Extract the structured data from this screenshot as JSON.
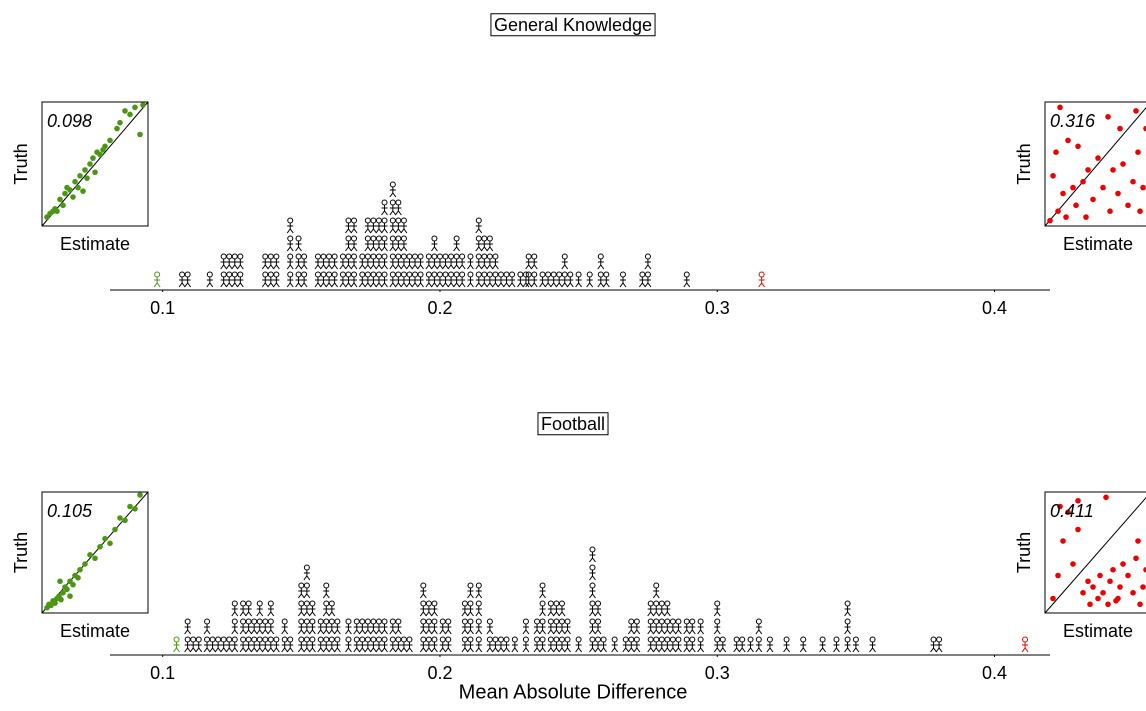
{
  "chart_data": [
    {
      "type": "dotplot",
      "title": "General Knowledge",
      "xlim": [
        0.081,
        0.42
      ],
      "xticks": [
        0.1,
        0.2,
        0.3,
        0.4
      ],
      "columns": {
        "x": [
          0.107,
          0.109,
          0.117,
          0.122,
          0.124,
          0.126,
          0.128,
          0.137,
          0.139,
          0.141,
          0.146,
          0.149,
          0.151,
          0.156,
          0.158,
          0.16,
          0.162,
          0.165,
          0.167,
          0.169,
          0.172,
          0.174,
          0.176,
          0.178,
          0.18,
          0.183,
          0.185,
          0.187,
          0.189,
          0.191,
          0.193,
          0.196,
          0.198,
          0.2,
          0.202,
          0.204,
          0.206,
          0.208,
          0.211,
          0.214,
          0.216,
          0.218,
          0.22,
          0.222,
          0.224,
          0.226,
          0.229,
          0.231,
          0.232,
          0.234,
          0.237,
          0.239,
          0.241,
          0.243,
          0.245,
          0.247,
          0.25,
          0.254,
          0.258,
          0.26,
          0.266,
          0.273,
          0.275,
          0.289
        ],
        "counts": [
          1,
          1,
          1,
          2,
          2,
          2,
          2,
          2,
          2,
          2,
          4,
          3,
          2,
          2,
          2,
          2,
          2,
          2,
          4,
          4,
          2,
          4,
          4,
          4,
          5,
          6,
          5,
          4,
          2,
          2,
          2,
          2,
          3,
          2,
          2,
          2,
          3,
          2,
          2,
          4,
          3,
          3,
          2,
          1,
          1,
          1,
          1,
          1,
          2,
          2,
          1,
          1,
          1,
          1,
          2,
          1,
          1,
          1,
          2,
          1,
          1,
          1,
          2,
          1
        ]
      },
      "insets": [
        {
          "xlabel": "Estimate",
          "ylabel": "Truth",
          "score": 0.098,
          "color": "#4b9612",
          "side": "left",
          "x": [
            0.02,
            0.05,
            0.08,
            0.1,
            0.12,
            0.15,
            0.18,
            0.2,
            0.22,
            0.25,
            0.28,
            0.3,
            0.33,
            0.35,
            0.38,
            0.4,
            0.42,
            0.45,
            0.48,
            0.5,
            0.52,
            0.55,
            0.58,
            0.6,
            0.65,
            0.72,
            0.75,
            0.8,
            0.85,
            0.9,
            0.95,
            0.98
          ],
          "y": [
            0.05,
            0.08,
            0.1,
            0.12,
            0.1,
            0.2,
            0.15,
            0.25,
            0.3,
            0.28,
            0.22,
            0.35,
            0.3,
            0.4,
            0.27,
            0.45,
            0.38,
            0.5,
            0.55,
            0.43,
            0.6,
            0.58,
            0.62,
            0.65,
            0.7,
            0.8,
            0.85,
            0.95,
            0.92,
            0.98,
            0.75,
            1.0
          ]
        },
        {
          "xlabel": "Estimate",
          "ylabel": "Truth",
          "score": 0.316,
          "color": "#ee0000",
          "side": "right",
          "x": [
            0.02,
            0.05,
            0.08,
            0.1,
            0.12,
            0.15,
            0.18,
            0.2,
            0.25,
            0.28,
            0.3,
            0.35,
            0.38,
            0.4,
            0.45,
            0.5,
            0.55,
            0.6,
            0.62,
            0.65,
            0.7,
            0.72,
            0.75,
            0.8,
            0.85,
            0.88,
            0.9,
            0.95,
            0.98,
            0.92
          ],
          "y": [
            0.02,
            0.4,
            0.6,
            0.1,
            0.98,
            0.25,
            0.05,
            0.7,
            0.3,
            0.15,
            0.65,
            0.35,
            0.05,
            0.45,
            0.2,
            0.55,
            0.3,
            0.9,
            0.1,
            0.45,
            0.25,
            0.8,
            0.5,
            0.15,
            0.35,
            0.95,
            0.6,
            0.3,
            0.8,
            0.1
          ]
        }
      ]
    },
    {
      "type": "dotplot",
      "title": "Football",
      "xlabel": "Mean Absolute Difference",
      "xlim": [
        0.081,
        0.42
      ],
      "xticks": [
        0.1,
        0.2,
        0.3,
        0.4
      ],
      "columns": {
        "x": [
          0.109,
          0.111,
          0.113,
          0.116,
          0.118,
          0.12,
          0.122,
          0.124,
          0.126,
          0.129,
          0.131,
          0.133,
          0.135,
          0.137,
          0.139,
          0.141,
          0.144,
          0.146,
          0.15,
          0.152,
          0.154,
          0.157,
          0.159,
          0.161,
          0.163,
          0.167,
          0.17,
          0.172,
          0.174,
          0.176,
          0.178,
          0.18,
          0.183,
          0.185,
          0.187,
          0.189,
          0.194,
          0.196,
          0.198,
          0.201,
          0.203,
          0.209,
          0.211,
          0.214,
          0.218,
          0.22,
          0.222,
          0.224,
          0.227,
          0.231,
          0.235,
          0.237,
          0.24,
          0.242,
          0.244,
          0.246,
          0.25,
          0.255,
          0.257,
          0.259,
          0.263,
          0.267,
          0.269,
          0.271,
          0.276,
          0.278,
          0.28,
          0.282,
          0.284,
          0.286,
          0.289,
          0.291,
          0.294,
          0.3,
          0.302,
          0.307,
          0.309,
          0.312,
          0.315,
          0.319,
          0.325,
          0.331,
          0.338,
          0.343,
          0.347,
          0.35,
          0.356,
          0.378,
          0.38
        ],
        "counts": [
          2,
          1,
          1,
          2,
          1,
          1,
          1,
          1,
          3,
          3,
          3,
          2,
          3,
          2,
          3,
          1,
          2,
          1,
          4,
          5,
          3,
          2,
          4,
          3,
          2,
          2,
          2,
          2,
          2,
          2,
          2,
          2,
          2,
          2,
          1,
          1,
          4,
          3,
          3,
          2,
          2,
          3,
          4,
          4,
          2,
          1,
          1,
          1,
          1,
          2,
          2,
          4,
          3,
          3,
          3,
          2,
          1,
          6,
          3,
          1,
          1,
          1,
          2,
          2,
          3,
          4,
          3,
          3,
          2,
          2,
          2,
          2,
          2,
          3,
          1,
          1,
          1,
          1,
          2,
          1,
          1,
          1,
          1,
          1,
          3,
          1,
          1,
          1,
          1
        ]
      },
      "insets": [
        {
          "xlabel": "Estimate",
          "ylabel": "Truth",
          "score": 0.105,
          "color": "#4b9612",
          "side": "left",
          "x": [
            0.02,
            0.04,
            0.06,
            0.08,
            0.1,
            0.12,
            0.14,
            0.16,
            0.18,
            0.2,
            0.22,
            0.25,
            0.28,
            0.3,
            0.33,
            0.35,
            0.4,
            0.45,
            0.5,
            0.55,
            0.6,
            0.65,
            0.7,
            0.75,
            0.8,
            0.85,
            0.9,
            0.95,
            0.15,
            0.25
          ],
          "y": [
            0.02,
            0.05,
            0.04,
            0.08,
            0.06,
            0.1,
            0.12,
            0.09,
            0.15,
            0.2,
            0.18,
            0.25,
            0.22,
            0.3,
            0.28,
            0.35,
            0.4,
            0.48,
            0.45,
            0.55,
            0.62,
            0.58,
            0.7,
            0.8,
            0.78,
            0.9,
            0.88,
            1.0,
            0.25,
            0.12
          ]
        },
        {
          "xlabel": "Estimate",
          "ylabel": "Truth",
          "score": 0.411,
          "color": "#ee0000",
          "side": "right",
          "x": [
            0.05,
            0.1,
            0.15,
            0.2,
            0.25,
            0.3,
            0.35,
            0.4,
            0.42,
            0.45,
            0.5,
            0.52,
            0.55,
            0.6,
            0.62,
            0.65,
            0.7,
            0.72,
            0.75,
            0.8,
            0.85,
            0.88,
            0.9,
            0.95,
            0.98,
            0.12,
            0.3,
            0.58,
            0.92,
            0.68
          ],
          "y": [
            0.1,
            0.3,
            0.6,
            0.85,
            0.4,
            0.7,
            0.15,
            0.25,
            0.05,
            0.2,
            0.1,
            0.3,
            0.15,
            0.05,
            0.25,
            0.35,
            0.1,
            0.2,
            0.4,
            0.3,
            0.15,
            0.45,
            0.6,
            0.2,
            0.35,
            0.9,
            0.95,
            0.98,
            0.05,
            0.08
          ]
        }
      ]
    }
  ]
}
